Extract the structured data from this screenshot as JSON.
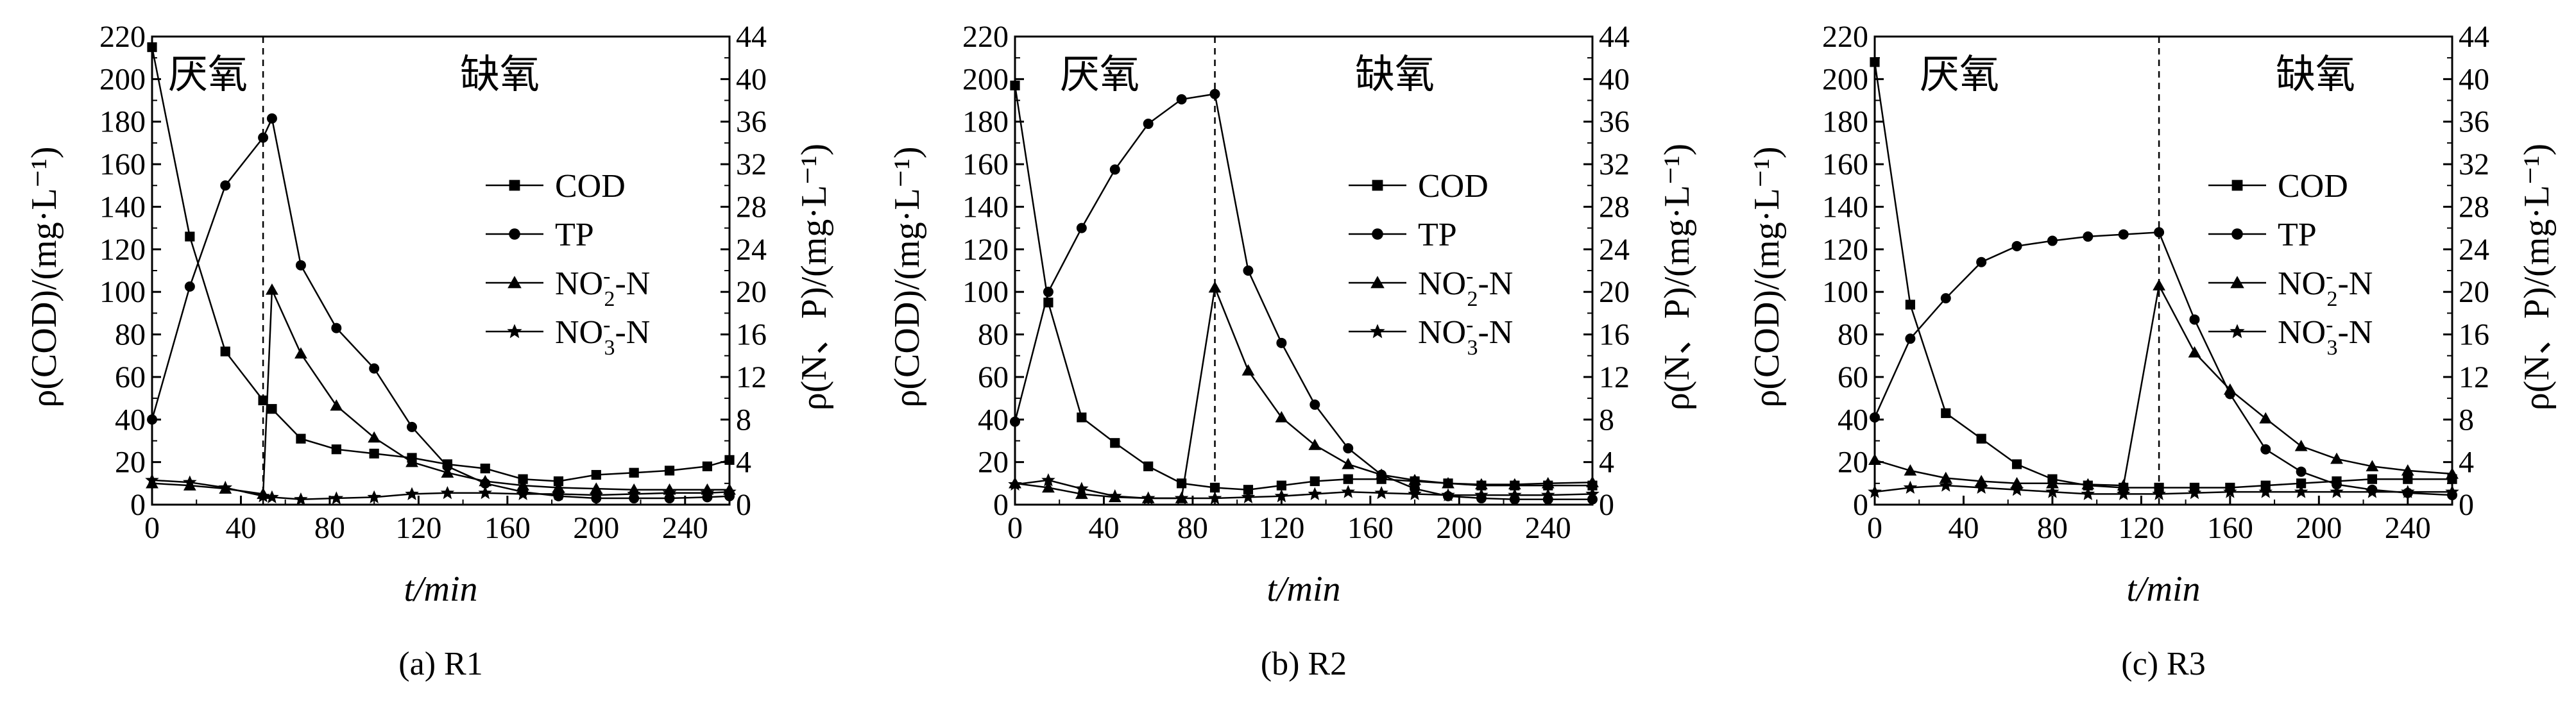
{
  "chart_data": [
    {
      "type": "line",
      "caption": "(a) R1",
      "xlabel": "t/min",
      "ylabel": "ρ(COD)/(mg·L⁻¹)",
      "y2label": "ρ(N、P)/(mg·L⁻¹)",
      "xlim": [
        0,
        260
      ],
      "xticks": [
        0,
        40,
        80,
        120,
        160,
        200,
        240
      ],
      "ylim": [
        0,
        220
      ],
      "y2lim": [
        0,
        44
      ],
      "phase_boundary": 50,
      "phase_labels": [
        "厌氧",
        "缺氧"
      ],
      "legend": "right",
      "series": [
        {
          "name": "COD",
          "marker": "square",
          "axis": "left",
          "x": [
            0,
            17,
            33,
            50,
            54,
            67,
            83,
            100,
            117,
            133,
            150,
            167,
            183,
            200,
            217,
            233,
            250,
            260
          ],
          "y": [
            215,
            126,
            72,
            49,
            45,
            31,
            26,
            24,
            22,
            19,
            17,
            12,
            11,
            14,
            15,
            16,
            18,
            21
          ]
        },
        {
          "name": "TP",
          "marker": "circle",
          "axis": "right",
          "x": [
            0,
            17,
            33,
            50,
            54,
            67,
            83,
            100,
            117,
            133,
            150,
            167,
            183,
            200,
            217,
            233,
            250,
            260
          ],
          "y": [
            8,
            20.5,
            30,
            34.5,
            36.3,
            22.5,
            16.6,
            12.8,
            7.3,
            3.6,
            2,
            1.2,
            0.8,
            0.6,
            0.6,
            0.6,
            0.7,
            0.8
          ]
        },
        {
          "name": "NO2-N",
          "marker": "triangle",
          "axis": "right",
          "x": [
            0,
            17,
            33,
            50,
            54,
            67,
            83,
            100,
            117,
            133,
            150,
            167,
            183,
            200,
            217,
            233,
            250,
            260
          ],
          "y": [
            2,
            1.8,
            1.5,
            1,
            20.2,
            14.2,
            9.3,
            6.3,
            4,
            3,
            2.2,
            1.8,
            1.6,
            1.5,
            1.4,
            1.4,
            1.4,
            1.4
          ]
        },
        {
          "name": "NO3-N",
          "marker": "star",
          "axis": "right",
          "x": [
            0,
            17,
            33,
            50,
            54,
            67,
            83,
            100,
            117,
            133,
            150,
            167,
            183,
            200,
            217,
            233,
            250,
            260
          ],
          "y": [
            2.3,
            2.1,
            1.6,
            0.8,
            0.7,
            0.5,
            0.6,
            0.7,
            1,
            1.1,
            1.1,
            1,
            1,
            0.9,
            1,
            1.1,
            1.1,
            1.2
          ]
        }
      ]
    },
    {
      "type": "line",
      "caption": "(b) R2",
      "xlabel": "t/min",
      "ylabel": "ρ(COD)/(mg·L⁻¹)",
      "y2label": "ρ(N、P)/(mg·L⁻¹)",
      "xlim": [
        0,
        260
      ],
      "xticks": [
        0,
        40,
        80,
        120,
        160,
        200,
        240
      ],
      "ylim": [
        0,
        220
      ],
      "y2lim": [
        0,
        44
      ],
      "phase_boundary": 90,
      "phase_labels": [
        "厌氧",
        "缺氧"
      ],
      "legend": "right",
      "series": [
        {
          "name": "COD",
          "marker": "square",
          "axis": "left",
          "x": [
            0,
            15,
            30,
            45,
            60,
            75,
            90,
            105,
            120,
            135,
            150,
            165,
            180,
            195,
            210,
            225,
            240,
            260
          ],
          "y": [
            197,
            95,
            41,
            29,
            18,
            10,
            8,
            7,
            9,
            11,
            12,
            12,
            11,
            10,
            9,
            9,
            9,
            9
          ]
        },
        {
          "name": "TP",
          "marker": "circle",
          "axis": "right",
          "x": [
            0,
            15,
            30,
            45,
            60,
            75,
            90,
            105,
            120,
            135,
            150,
            165,
            180,
            195,
            210,
            225,
            240,
            260
          ],
          "y": [
            7.8,
            20,
            26,
            31.5,
            35.8,
            38.1,
            38.6,
            22,
            15.2,
            9.4,
            5.3,
            2.8,
            1.5,
            0.8,
            0.6,
            0.5,
            0.5,
            0.5
          ]
        },
        {
          "name": "NO2-N",
          "marker": "triangle",
          "axis": "right",
          "x": [
            0,
            15,
            30,
            45,
            60,
            75,
            90,
            105,
            120,
            135,
            150,
            165,
            180,
            195,
            210,
            225,
            240,
            260
          ],
          "y": [
            2,
            1.6,
            1,
            0.7,
            0.6,
            0.6,
            20.4,
            12.6,
            8.2,
            5.6,
            3.8,
            2.8,
            2.3,
            2,
            1.9,
            1.9,
            2,
            2.1
          ]
        },
        {
          "name": "NO3-N",
          "marker": "star",
          "axis": "right",
          "x": [
            0,
            15,
            30,
            45,
            60,
            75,
            90,
            105,
            120,
            135,
            150,
            165,
            180,
            195,
            210,
            225,
            240,
            260
          ],
          "y": [
            1.9,
            2.3,
            1.5,
            0.8,
            0.6,
            0.6,
            0.6,
            0.7,
            0.8,
            1,
            1.2,
            1.1,
            1,
            0.9,
            0.9,
            0.9,
            0.9,
            1
          ]
        }
      ]
    },
    {
      "type": "line",
      "caption": "(c) R3",
      "xlabel": "t/min",
      "ylabel": "ρ(COD)/(mg·L⁻¹)",
      "y2label": "ρ(N、P)/(mg·L⁻¹)",
      "xlim": [
        0,
        260
      ],
      "xticks": [
        0,
        40,
        80,
        120,
        160,
        200,
        240
      ],
      "ylim": [
        0,
        220
      ],
      "y2lim": [
        0,
        44
      ],
      "phase_boundary": 128,
      "phase_labels": [
        "厌氧",
        "缺氧"
      ],
      "legend": "right",
      "series": [
        {
          "name": "COD",
          "marker": "square",
          "axis": "left",
          "x": [
            0,
            16,
            32,
            48,
            64,
            80,
            96,
            112,
            128,
            144,
            160,
            176,
            192,
            208,
            224,
            240,
            260
          ],
          "y": [
            208,
            94,
            43,
            31,
            19,
            12,
            9,
            8,
            8,
            8,
            8,
            9,
            10,
            11,
            12,
            12,
            12
          ]
        },
        {
          "name": "TP",
          "marker": "circle",
          "axis": "right",
          "x": [
            0,
            16,
            32,
            48,
            64,
            80,
            96,
            112,
            128,
            144,
            160,
            176,
            192,
            208,
            224,
            240,
            260
          ],
          "y": [
            8.2,
            15.6,
            19.4,
            22.8,
            24.3,
            24.8,
            25.2,
            25.4,
            25.6,
            17.4,
            10.4,
            5.2,
            3.1,
            1.9,
            1.4,
            1.1,
            0.9
          ]
        },
        {
          "name": "NO2-N",
          "marker": "triangle",
          "axis": "right",
          "x": [
            0,
            16,
            32,
            48,
            64,
            80,
            96,
            112,
            128,
            144,
            160,
            176,
            192,
            208,
            224,
            240,
            260
          ],
          "y": [
            4.2,
            3.2,
            2.5,
            2.2,
            2,
            2,
            1.9,
            1.8,
            20.6,
            14.3,
            10.8,
            8.1,
            5.5,
            4.3,
            3.6,
            3.2,
            2.9
          ]
        },
        {
          "name": "NO3-N",
          "marker": "star",
          "axis": "right",
          "x": [
            0,
            16,
            32,
            48,
            64,
            80,
            96,
            112,
            128,
            144,
            160,
            176,
            192,
            208,
            224,
            240,
            260
          ],
          "y": [
            1.2,
            1.6,
            1.8,
            1.6,
            1.4,
            1.2,
            1,
            1,
            1,
            1.1,
            1.2,
            1.2,
            1.2,
            1.2,
            1.2,
            1.2,
            1.2
          ]
        }
      ]
    }
  ]
}
